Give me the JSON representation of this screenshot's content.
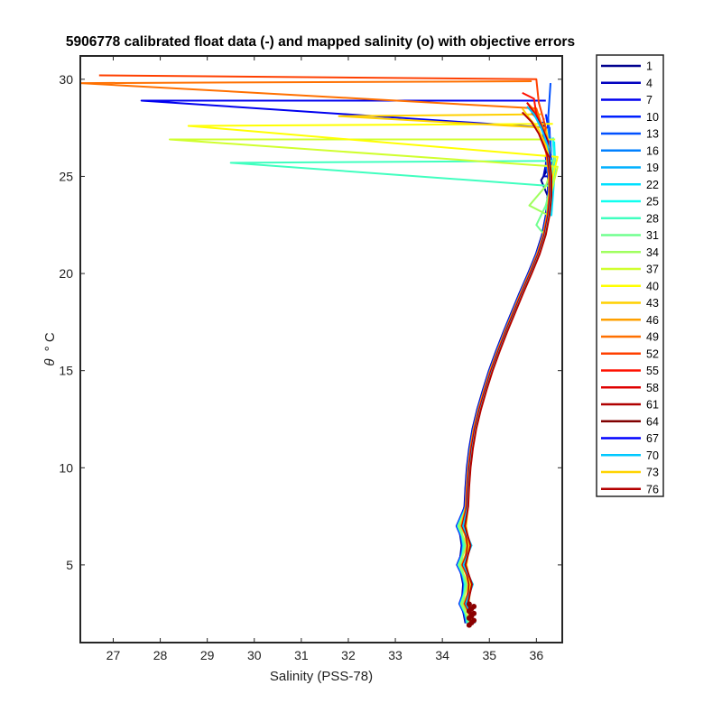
{
  "chart_data": {
    "type": "line",
    "title": "5906778 calibrated float data (-) and mapped salinity (o) with objective errors",
    "xlabel": "Salinity (PSS-78)",
    "ylabel_symbol": "θ",
    "ylabel_unit": "° C",
    "xlim": [
      26.3,
      36.55
    ],
    "ylim": [
      1,
      31.2
    ],
    "xticks": [
      27,
      28,
      29,
      30,
      31,
      32,
      33,
      34,
      35,
      36
    ],
    "yticks": [
      5,
      10,
      15,
      20,
      25,
      30
    ],
    "grid": false,
    "legend_position": "outside-right",
    "legend": [
      "1",
      "4",
      "7",
      "10",
      "13",
      "16",
      "19",
      "22",
      "25",
      "28",
      "31",
      "34",
      "37",
      "40",
      "43",
      "46",
      "49",
      "52",
      "55",
      "58",
      "61",
      "64",
      "67",
      "70",
      "73",
      "76"
    ],
    "legend_colors": [
      "#00008f",
      "#0000bf",
      "#0000ef",
      "#0020ff",
      "#0050ff",
      "#0080ff",
      "#00b0ff",
      "#00e0ff",
      "#10ffef",
      "#40ffbf",
      "#70ff8f",
      "#a0ff5f",
      "#d0ff2f",
      "#ffff00",
      "#ffd000",
      "#ffa000",
      "#ff7000",
      "#ff4000",
      "#ff1000",
      "#df0000",
      "#af0000",
      "#800000",
      "#0000ff",
      "#00c8ff",
      "#ffd400",
      "#b40000"
    ],
    "base_curve": {
      "theta": [
        2,
        3,
        4,
        5,
        6,
        7,
        8,
        9,
        10,
        11,
        12,
        13,
        14,
        15,
        16,
        17,
        18,
        19,
        20,
        21,
        22,
        23,
        24,
        25,
        26,
        27,
        28
      ],
      "salinity": [
        34.6,
        34.58,
        34.55,
        34.53,
        34.52,
        34.52,
        34.53,
        34.55,
        34.58,
        34.63,
        34.7,
        34.8,
        34.92,
        35.05,
        35.2,
        35.36,
        35.53,
        35.7,
        35.88,
        36.05,
        36.18,
        36.26,
        36.3,
        36.3,
        36.25,
        36.15,
        35.95
      ]
    },
    "series": [
      {
        "name": "1",
        "x": [
          36.1,
          36.2,
          36.25,
          36.2,
          36.15
        ],
        "y": [
          24.8,
          25.2,
          25.8,
          26.6,
          28.0
        ]
      },
      {
        "name": "4",
        "x": [
          36.15,
          36.2,
          36.22,
          36.12
        ],
        "y": [
          25.0,
          25.6,
          26.3,
          27.8
        ]
      },
      {
        "name": "7",
        "x": [
          27.6,
          36.2,
          36.28,
          36.3
        ],
        "y": [
          28.9,
          28.9,
          27.5,
          26.0
        ]
      },
      {
        "name": "10",
        "x": [
          36.25,
          36.32,
          36.3,
          36.2
        ],
        "y": [
          24.5,
          25.5,
          26.8,
          28.2
        ]
      },
      {
        "name": "13",
        "x": [
          36.2,
          36.3,
          36.25,
          36.3
        ],
        "y": [
          25.5,
          26.5,
          28.0,
          29.8
        ]
      },
      {
        "name": "16",
        "x": [
          36.28,
          36.35,
          36.3,
          36.25
        ],
        "y": [
          24.0,
          25.0,
          26.5,
          27.5
        ]
      },
      {
        "name": "19",
        "x": [
          36.3,
          36.38,
          36.35
        ],
        "y": [
          24.5,
          26.0,
          27.0
        ]
      },
      {
        "name": "22",
        "x": [
          36.32,
          36.4,
          36.38
        ],
        "y": [
          23.0,
          25.5,
          26.8
        ]
      },
      {
        "name": "25",
        "x": [
          36.3,
          36.4,
          36.35
        ],
        "y": [
          24.0,
          25.5,
          27.0
        ]
      },
      {
        "name": "28",
        "x": [
          29.5,
          36.4,
          36.35,
          36.2
        ],
        "y": [
          25.7,
          25.8,
          24.5,
          23.5
        ]
      },
      {
        "name": "31",
        "x": [
          36.0,
          36.2,
          36.3,
          36.35
        ],
        "y": [
          22.5,
          23.5,
          24.5,
          25.5
        ]
      },
      {
        "name": "34",
        "x": [
          35.85,
          36.2,
          36.4
        ],
        "y": [
          23.5,
          24.5,
          26.0
        ]
      },
      {
        "name": "37",
        "x": [
          28.2,
          36.4,
          36.45,
          36.3
        ],
        "y": [
          26.9,
          26.9,
          25.5,
          24.0
        ]
      },
      {
        "name": "40",
        "x": [
          28.6,
          36.35,
          36.45,
          36.3
        ],
        "y": [
          27.6,
          27.7,
          26.0,
          24.5
        ]
      },
      {
        "name": "43",
        "x": [
          31.8,
          36.1,
          36.2,
          36.3
        ],
        "y": [
          28.1,
          28.2,
          27.5,
          26.0
        ]
      },
      {
        "name": "46",
        "x": [
          35.8,
          36.0,
          36.2,
          36.3
        ],
        "y": [
          28.8,
          28.3,
          27.2,
          26.0
        ]
      },
      {
        "name": "49",
        "x": [
          26.3,
          35.9,
          36.0,
          36.2
        ],
        "y": [
          29.8,
          29.9,
          28.5,
          27.0
        ]
      },
      {
        "name": "52",
        "x": [
          26.7,
          36.0,
          36.05,
          36.2
        ],
        "y": [
          30.2,
          30.0,
          28.8,
          27.5
        ]
      },
      {
        "name": "55",
        "x": [
          35.7,
          35.95,
          36.0,
          36.15
        ],
        "y": [
          29.3,
          29.0,
          28.2,
          27.3
        ]
      },
      {
        "name": "58",
        "x": [
          35.8,
          35.95,
          36.1,
          36.25
        ],
        "y": [
          28.8,
          28.3,
          27.6,
          26.8
        ]
      },
      {
        "name": "61",
        "x": [
          35.9,
          36.0,
          36.15,
          36.25
        ],
        "y": [
          28.3,
          28.0,
          27.3,
          26.5
        ]
      },
      {
        "name": "64",
        "x": [
          35.95,
          36.05,
          36.2,
          36.28
        ],
        "y": [
          28.2,
          27.8,
          27.0,
          26.2
        ]
      },
      {
        "name": "67",
        "x": [
          36.0,
          36.1,
          36.22,
          36.3
        ],
        "y": [
          28.0,
          27.5,
          26.8,
          26.0
        ]
      },
      {
        "name": "70",
        "x": [
          35.8,
          35.95,
          36.1,
          36.25
        ],
        "y": [
          28.6,
          28.2,
          27.5,
          26.5
        ]
      },
      {
        "name": "73",
        "x": [
          35.7,
          35.85,
          36.05,
          36.2
        ],
        "y": [
          28.5,
          28.0,
          27.4,
          26.6
        ]
      },
      {
        "name": "76",
        "x": [
          35.7,
          35.9,
          36.05,
          36.2
        ],
        "y": [
          28.3,
          27.8,
          27.2,
          26.3
        ]
      }
    ]
  }
}
